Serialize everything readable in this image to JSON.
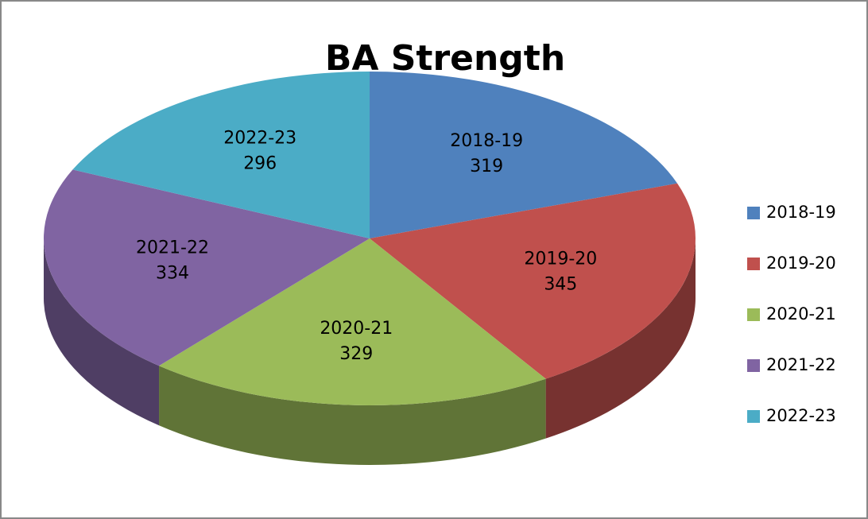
{
  "chart_data": {
    "type": "pie",
    "title": "BA Strength",
    "categories": [
      "2018-19",
      "2019-20",
      "2020-21",
      "2021-22",
      "2022-23"
    ],
    "values": [
      319,
      345,
      329,
      334,
      296
    ],
    "colors": [
      "#4f81bd",
      "#c0504d",
      "#9bbb59",
      "#8064a2",
      "#4bacc6"
    ],
    "legend": "right",
    "3d": true
  }
}
